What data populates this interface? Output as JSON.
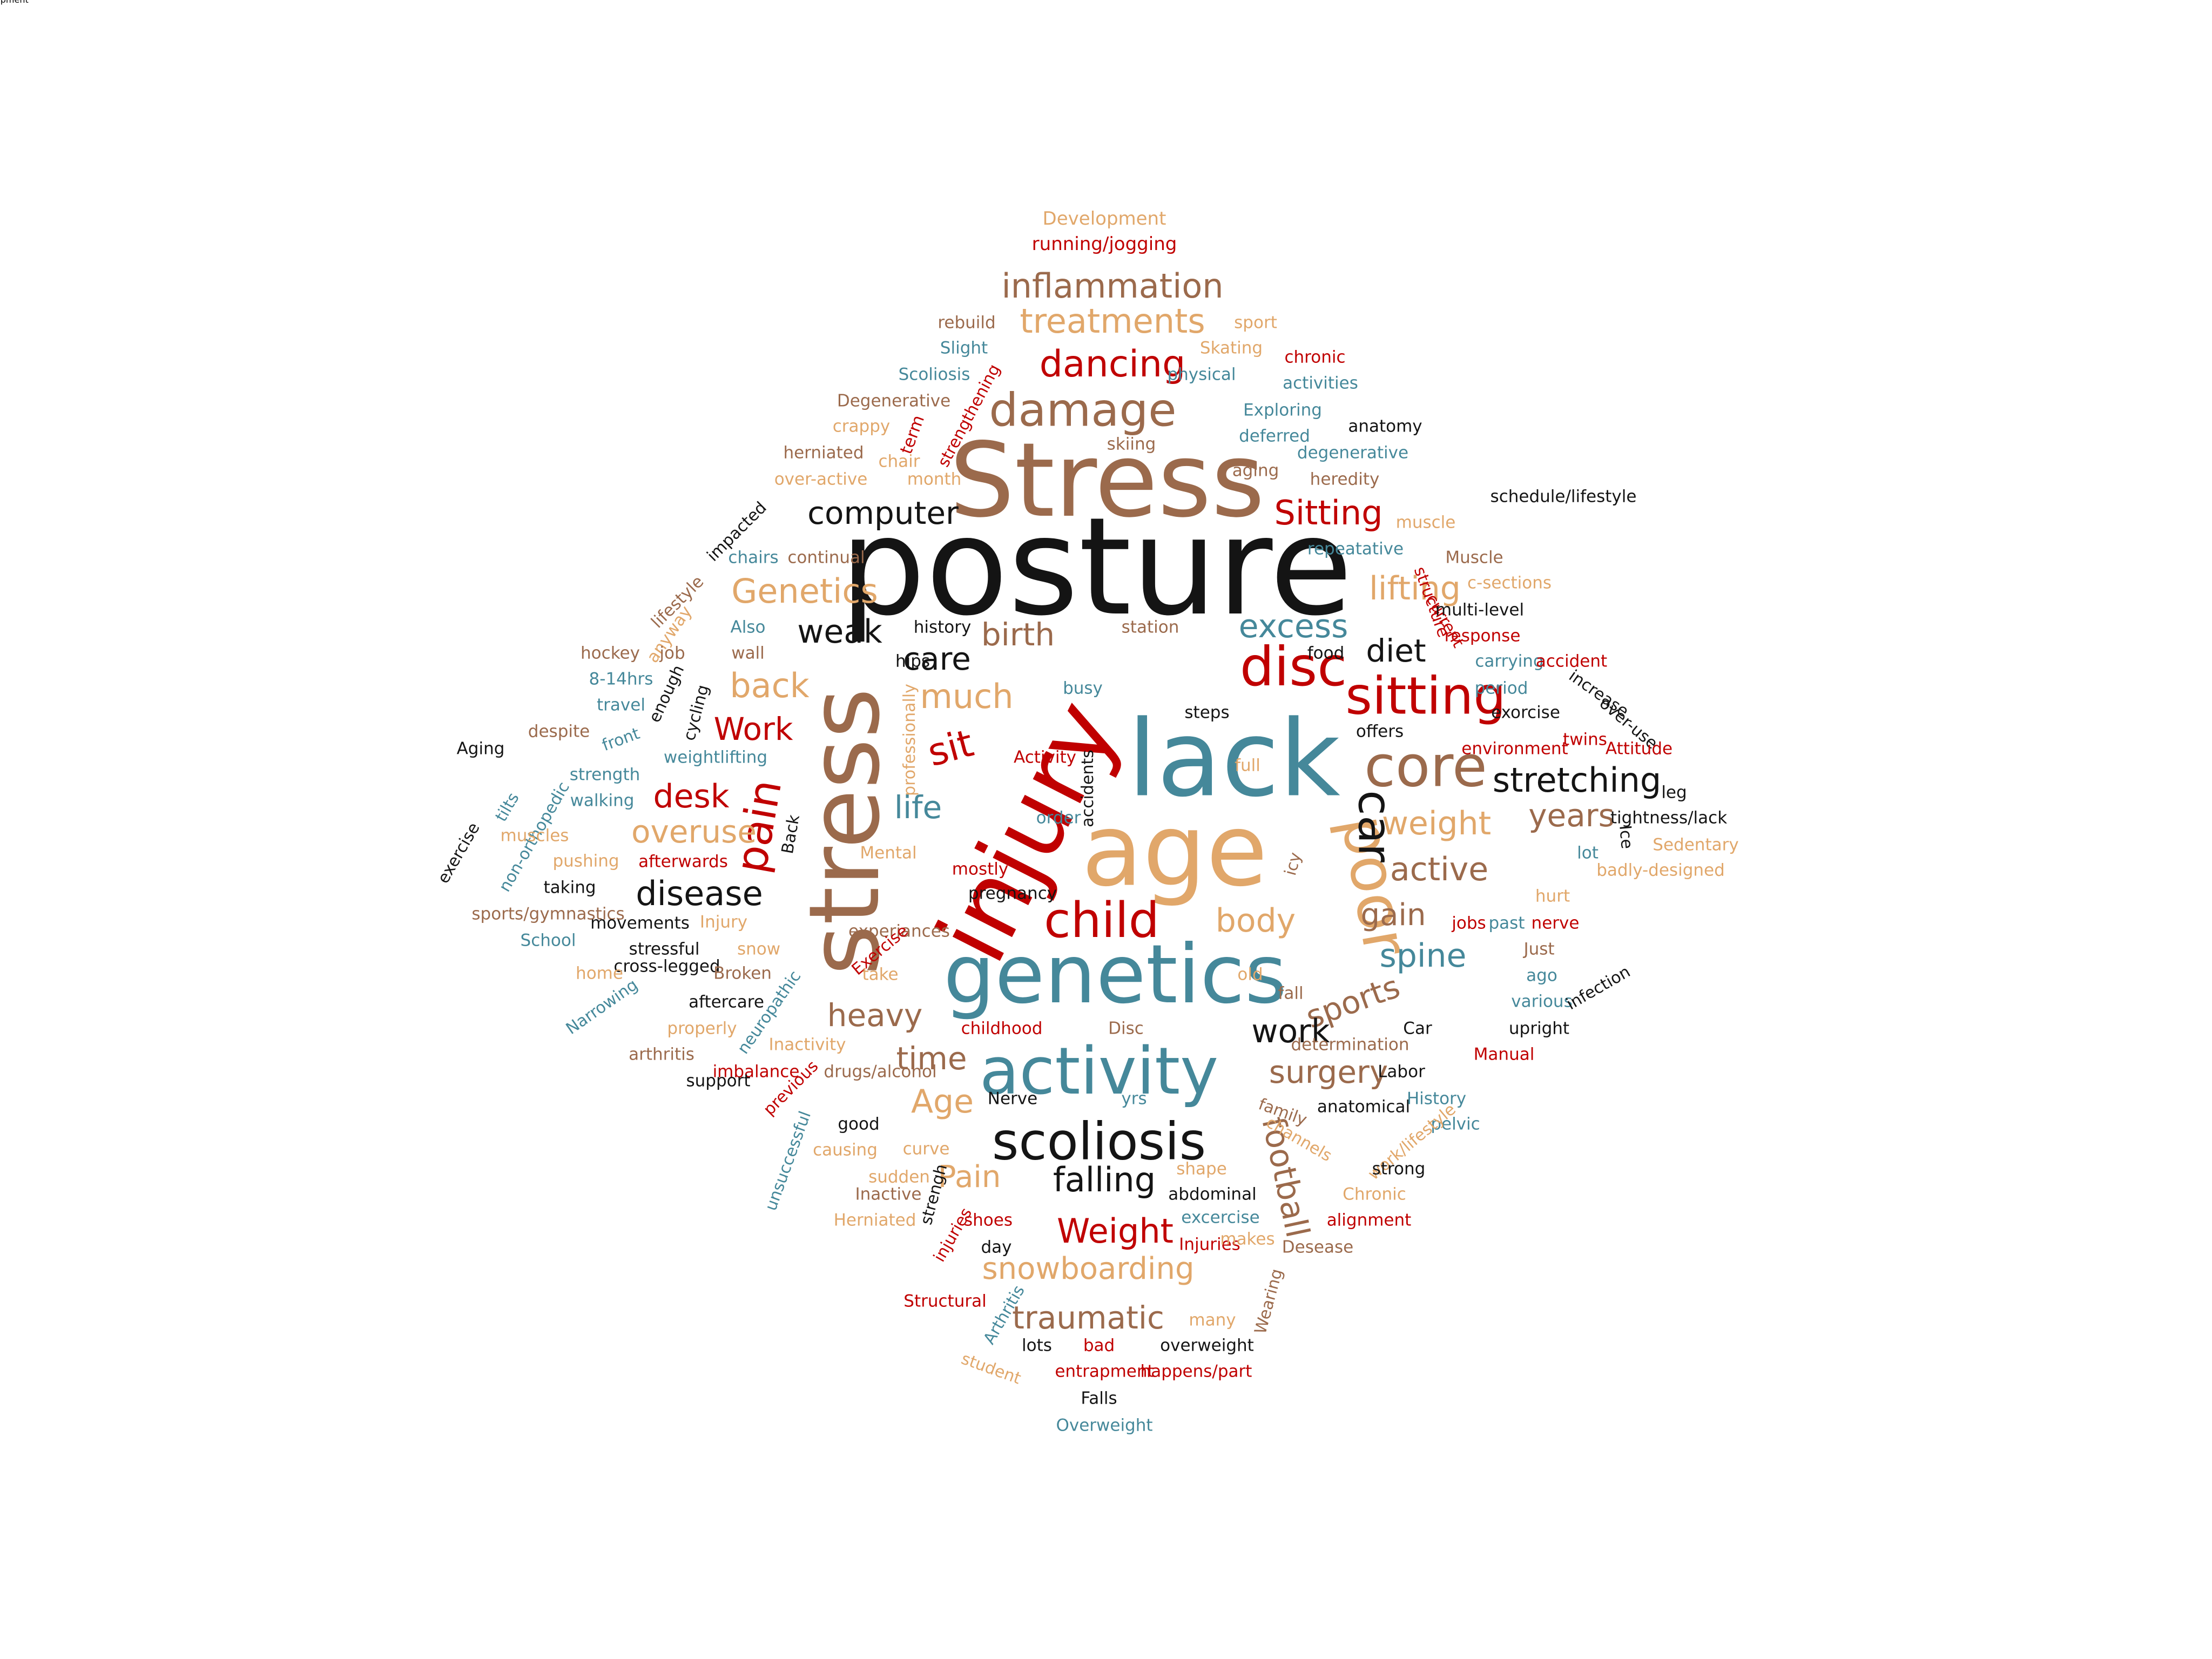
{
  "colors": {
    "black": "#141414",
    "red": "#C00000",
    "brown": "#9B6A4C",
    "tan": "#E1A76A",
    "teal": "#45889A"
  },
  "words": [
    {
      "text": "posture",
      "color": "black"
    },
    {
      "text": "Stress",
      "color": "brown"
    },
    {
      "text": "injury",
      "color": "red"
    },
    {
      "text": "stress",
      "color": "brown"
    },
    {
      "text": "lack",
      "color": "teal"
    },
    {
      "text": "age",
      "color": "tan"
    },
    {
      "text": "genetics",
      "color": "teal"
    },
    {
      "text": "activity",
      "color": "teal"
    },
    {
      "text": "poor",
      "color": "tan"
    },
    {
      "text": "core",
      "color": "brown"
    },
    {
      "text": "disc",
      "color": "red"
    },
    {
      "text": "damage",
      "color": "brown"
    },
    {
      "text": "sitting",
      "color": "red"
    },
    {
      "text": "scoliosis",
      "color": "black"
    },
    {
      "text": "child",
      "color": "red"
    },
    {
      "text": "car",
      "color": "black"
    },
    {
      "text": "inflammation",
      "color": "brown"
    },
    {
      "text": "treatments",
      "color": "tan"
    },
    {
      "text": "football",
      "color": "brown"
    },
    {
      "text": "pain",
      "color": "red"
    },
    {
      "text": "computer",
      "color": "black"
    },
    {
      "text": "dancing",
      "color": "red"
    },
    {
      "text": "Sitting",
      "color": "red"
    },
    {
      "text": "Genetics",
      "color": "tan"
    },
    {
      "text": "weak",
      "color": "black"
    },
    {
      "text": "birth",
      "color": "brown"
    },
    {
      "text": "excess",
      "color": "teal"
    },
    {
      "text": "lifting",
      "color": "tan"
    },
    {
      "text": "diet",
      "color": "black"
    },
    {
      "text": "care",
      "color": "black"
    },
    {
      "text": "back",
      "color": "tan"
    },
    {
      "text": "much",
      "color": "tan"
    },
    {
      "text": "Work",
      "color": "red"
    },
    {
      "text": "sit",
      "color": "red"
    },
    {
      "text": "desk",
      "color": "red"
    },
    {
      "text": "life",
      "color": "teal"
    },
    {
      "text": "overuse",
      "color": "tan"
    },
    {
      "text": "disease",
      "color": "black"
    },
    {
      "text": "stretching",
      "color": "black"
    },
    {
      "text": "weight",
      "color": "tan"
    },
    {
      "text": "years",
      "color": "brown"
    },
    {
      "text": "active",
      "color": "brown"
    },
    {
      "text": "gain",
      "color": "brown"
    },
    {
      "text": "body",
      "color": "tan"
    },
    {
      "text": "spine",
      "color": "teal"
    },
    {
      "text": "sports",
      "color": "brown"
    },
    {
      "text": "heavy",
      "color": "brown"
    },
    {
      "text": "work",
      "color": "black"
    },
    {
      "text": "time",
      "color": "brown"
    },
    {
      "text": "surgery",
      "color": "brown"
    },
    {
      "text": "Age",
      "color": "tan"
    },
    {
      "text": "Pain",
      "color": "tan"
    },
    {
      "text": "falling",
      "color": "black"
    },
    {
      "text": "Weight",
      "color": "red"
    },
    {
      "text": "snowboarding",
      "color": "tan"
    },
    {
      "text": "traumatic",
      "color": "brown"
    },
    {
      "text": "Development",
      "color": "tan"
    },
    {
      "text": "running/jogging",
      "color": "red"
    },
    {
      "text": "rebuild",
      "color": "brown"
    },
    {
      "text": "sport",
      "color": "tan"
    },
    {
      "text": "Slight",
      "color": "teal"
    },
    {
      "text": "Skating",
      "color": "tan"
    },
    {
      "text": "chronic",
      "color": "red"
    },
    {
      "text": "Scoliosis",
      "color": "teal"
    },
    {
      "text": "strengthening",
      "color": "red"
    },
    {
      "text": "physical",
      "color": "teal"
    },
    {
      "text": "activities",
      "color": "teal"
    },
    {
      "text": "Degenerative",
      "color": "brown"
    },
    {
      "text": "Exploring",
      "color": "teal"
    },
    {
      "text": "crappy",
      "color": "tan"
    },
    {
      "text": "term",
      "color": "red"
    },
    {
      "text": "skiing",
      "color": "brown"
    },
    {
      "text": "deferred",
      "color": "teal"
    },
    {
      "text": "anatomy",
      "color": "black"
    },
    {
      "text": "herniated",
      "color": "brown"
    },
    {
      "text": "chair",
      "color": "tan"
    },
    {
      "text": "degenerative",
      "color": "teal"
    },
    {
      "text": "over-active",
      "color": "tan"
    },
    {
      "text": "month",
      "color": "tan"
    },
    {
      "text": "aging",
      "color": "brown"
    },
    {
      "text": "heredity",
      "color": "brown"
    },
    {
      "text": "impacted",
      "color": "black"
    },
    {
      "text": "schedule/lifestyle",
      "color": "black"
    },
    {
      "text": "muscle",
      "color": "tan"
    },
    {
      "text": "continual",
      "color": "brown"
    },
    {
      "text": "chairs",
      "color": "teal"
    },
    {
      "text": "repeatative",
      "color": "teal"
    },
    {
      "text": "Muscle",
      "color": "brown"
    },
    {
      "text": "lifestyle",
      "color": "brown"
    },
    {
      "text": "structure",
      "color": "red"
    },
    {
      "text": "c-sections",
      "color": "tan"
    },
    {
      "text": "anyway",
      "color": "tan"
    },
    {
      "text": "Also",
      "color": "teal"
    },
    {
      "text": "history",
      "color": "black"
    },
    {
      "text": "station",
      "color": "brown"
    },
    {
      "text": "current",
      "color": "red"
    },
    {
      "text": "multi-level",
      "color": "black"
    },
    {
      "text": "response",
      "color": "red"
    },
    {
      "text": "hockey",
      "color": "brown"
    },
    {
      "text": "job",
      "color": "brown"
    },
    {
      "text": "wall",
      "color": "brown"
    },
    {
      "text": "hips",
      "color": "black"
    },
    {
      "text": "food",
      "color": "black"
    },
    {
      "text": "carrying",
      "color": "teal"
    },
    {
      "text": "accident",
      "color": "red"
    },
    {
      "text": "8-14hrs",
      "color": "teal"
    },
    {
      "text": "enough",
      "color": "black"
    },
    {
      "text": "busy",
      "color": "teal"
    },
    {
      "text": "period",
      "color": "teal"
    },
    {
      "text": "increase",
      "color": "black"
    },
    {
      "text": "travel",
      "color": "teal"
    },
    {
      "text": "cycling",
      "color": "black"
    },
    {
      "text": "professionally",
      "color": "tan"
    },
    {
      "text": "steps",
      "color": "black"
    },
    {
      "text": "exorcise",
      "color": "black"
    },
    {
      "text": "over-use",
      "color": "black"
    },
    {
      "text": "despite",
      "color": "brown"
    },
    {
      "text": "front",
      "color": "teal"
    },
    {
      "text": "offers",
      "color": "black"
    },
    {
      "text": "twins",
      "color": "red"
    },
    {
      "text": "Aging",
      "color": "black"
    },
    {
      "text": "weightlifting",
      "color": "teal"
    },
    {
      "text": "environment",
      "color": "red"
    },
    {
      "text": "Attitude",
      "color": "red"
    },
    {
      "text": "strength",
      "color": "teal"
    },
    {
      "text": "Activity",
      "color": "red"
    },
    {
      "text": "full",
      "color": "tan"
    },
    {
      "text": "tilts",
      "color": "teal"
    },
    {
      "text": "walking",
      "color": "teal"
    },
    {
      "text": "accidents",
      "color": "black"
    },
    {
      "text": "leg",
      "color": "black"
    },
    {
      "text": "exercise",
      "color": "black"
    },
    {
      "text": "non-orthopedic",
      "color": "teal"
    },
    {
      "text": "muscles",
      "color": "tan"
    },
    {
      "text": "Back",
      "color": "black"
    },
    {
      "text": "order",
      "color": "teal"
    },
    {
      "text": "Ice",
      "color": "black"
    },
    {
      "text": "tightness/lack",
      "color": "black"
    },
    {
      "text": "pushing",
      "color": "tan"
    },
    {
      "text": "afterwards",
      "color": "red"
    },
    {
      "text": "Mental",
      "color": "tan"
    },
    {
      "text": "mostly",
      "color": "red"
    },
    {
      "text": "icy",
      "color": "brown"
    },
    {
      "text": "lot",
      "color": "teal"
    },
    {
      "text": "Sedentary",
      "color": "tan"
    },
    {
      "text": "badly-designed",
      "color": "tan"
    },
    {
      "text": "taking",
      "color": "black"
    },
    {
      "text": "pregnancy",
      "color": "black"
    },
    {
      "text": "hurt",
      "color": "tan"
    },
    {
      "text": "sports/gymnastics",
      "color": "brown"
    },
    {
      "text": "movements",
      "color": "black"
    },
    {
      "text": "Injury",
      "color": "tan"
    },
    {
      "text": "experiances",
      "color": "brown"
    },
    {
      "text": "jobs",
      "color": "red"
    },
    {
      "text": "past",
      "color": "teal"
    },
    {
      "text": "nerve",
      "color": "red"
    },
    {
      "text": "School",
      "color": "teal"
    },
    {
      "text": "stressful",
      "color": "black"
    },
    {
      "text": "snow",
      "color": "tan"
    },
    {
      "text": "Exercise",
      "color": "red"
    },
    {
      "text": "Just",
      "color": "brown"
    },
    {
      "text": "cross-legged",
      "color": "black"
    },
    {
      "text": "home",
      "color": "tan"
    },
    {
      "text": "Broken",
      "color": "brown"
    },
    {
      "text": "take",
      "color": "tan"
    },
    {
      "text": "old",
      "color": "tan"
    },
    {
      "text": "fall",
      "color": "brown"
    },
    {
      "text": "ago",
      "color": "teal"
    },
    {
      "text": "Narrowing",
      "color": "teal"
    },
    {
      "text": "aftercare",
      "color": "black"
    },
    {
      "text": "various",
      "color": "teal"
    },
    {
      "text": "infection",
      "color": "black"
    },
    {
      "text": "neuropathic",
      "color": "teal"
    },
    {
      "text": "properly",
      "color": "tan"
    },
    {
      "text": "childhood",
      "color": "red"
    },
    {
      "text": "Disc",
      "color": "brown"
    },
    {
      "text": "Car",
      "color": "black"
    },
    {
      "text": "upright",
      "color": "black"
    },
    {
      "text": "Inactivity",
      "color": "tan"
    },
    {
      "text": "arthritis",
      "color": "brown"
    },
    {
      "text": "determination",
      "color": "brown"
    },
    {
      "text": "Manual",
      "color": "red"
    },
    {
      "text": "imbalance",
      "color": "red"
    },
    {
      "text": "previous",
      "color": "red"
    },
    {
      "text": "drugs/alcohol",
      "color": "brown"
    },
    {
      "text": "Labor",
      "color": "black"
    },
    {
      "text": "support",
      "color": "black"
    },
    {
      "text": "Nerve",
      "color": "black"
    },
    {
      "text": "yrs",
      "color": "teal"
    },
    {
      "text": "family",
      "color": "brown"
    },
    {
      "text": "anatomical",
      "color": "black"
    },
    {
      "text": "History",
      "color": "teal"
    },
    {
      "text": "good",
      "color": "black"
    },
    {
      "text": "channels",
      "color": "tan"
    },
    {
      "text": "pelvic",
      "color": "teal"
    },
    {
      "text": "causing",
      "color": "tan"
    },
    {
      "text": "curve",
      "color": "tan"
    },
    {
      "text": "work/lifestyle",
      "color": "tan"
    },
    {
      "text": "unsuccessful",
      "color": "teal"
    },
    {
      "text": "sudden",
      "color": "tan"
    },
    {
      "text": "shape",
      "color": "tan"
    },
    {
      "text": "strong",
      "color": "black"
    },
    {
      "text": "Inactive",
      "color": "brown"
    },
    {
      "text": "strengh",
      "color": "black"
    },
    {
      "text": "abdominal",
      "color": "black"
    },
    {
      "text": "Chronic",
      "color": "tan"
    },
    {
      "text": "Herniated",
      "color": "tan"
    },
    {
      "text": "shoes",
      "color": "red"
    },
    {
      "text": "excercise",
      "color": "teal"
    },
    {
      "text": "alignment",
      "color": "red"
    },
    {
      "text": "injuries",
      "color": "red"
    },
    {
      "text": "day",
      "color": "black"
    },
    {
      "text": "Injuries",
      "color": "red"
    },
    {
      "text": "makes",
      "color": "tan"
    },
    {
      "text": "Desease",
      "color": "brown"
    },
    {
      "text": "Wearing",
      "color": "brown"
    },
    {
      "text": "Structural",
      "color": "red"
    },
    {
      "text": "Arthritis",
      "color": "teal"
    },
    {
      "text": "many",
      "color": "tan"
    },
    {
      "text": "lots",
      "color": "black"
    },
    {
      "text": "bad",
      "color": "red"
    },
    {
      "text": "overweight",
      "color": "black"
    },
    {
      "text": "student",
      "color": "tan"
    },
    {
      "text": "entrapment",
      "color": "red"
    },
    {
      "text": "happens/part",
      "color": "red"
    },
    {
      "text": "Falls",
      "color": "black"
    },
    {
      "text": "Overweight",
      "color": "teal"
    },
    {
      "text": "development",
      "color": "brown"
    }
  ]
}
